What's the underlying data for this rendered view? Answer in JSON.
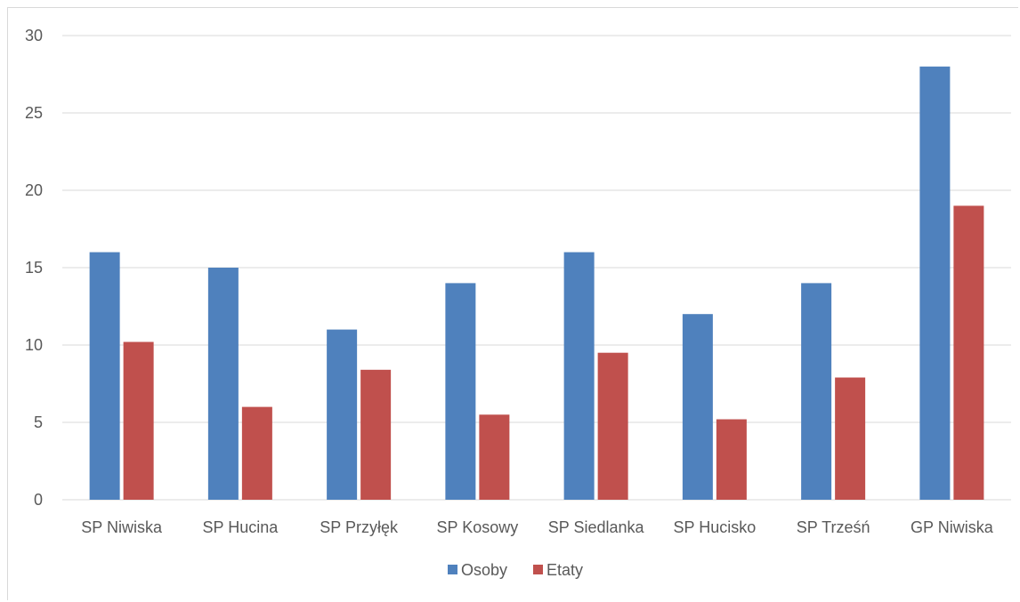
{
  "chart_data": {
    "type": "bar",
    "title": "",
    "xlabel": "",
    "ylabel": "",
    "ylim": [
      0,
      30
    ],
    "yticks": [
      0,
      5,
      10,
      15,
      20,
      25,
      30
    ],
    "grid": true,
    "legend_position": "bottom",
    "categories": [
      "SP Niwiska",
      "SP Hucina",
      "SP Przyłęk",
      "SP Kosowy",
      "SP Siedlanka",
      "SP Hucisko",
      "SP Trześń",
      "GP Niwiska"
    ],
    "series": [
      {
        "name": "Osoby",
        "color": "#4f81bd",
        "values": [
          16,
          15,
          11,
          14,
          16,
          12,
          14,
          28
        ]
      },
      {
        "name": "Etaty",
        "color": "#c0504d",
        "values": [
          10.2,
          6,
          8.4,
          5.5,
          9.5,
          5.2,
          7.9,
          19
        ]
      }
    ]
  }
}
